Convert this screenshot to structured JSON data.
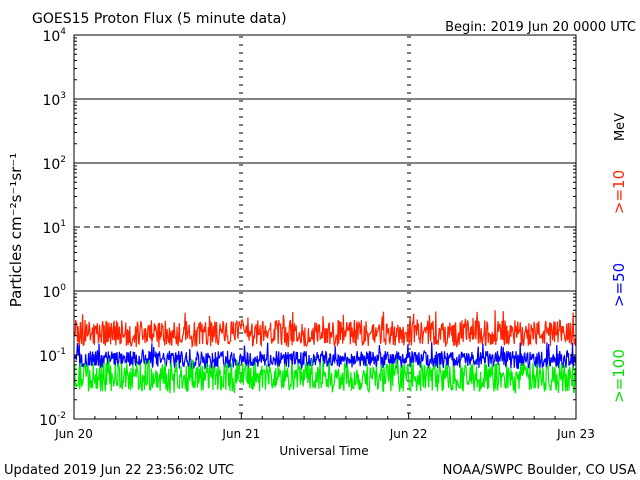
{
  "header": {
    "title": "GOES15 Proton Flux (5 minute data)",
    "begin": "Begin: 2019 Jun 20 0000 UTC"
  },
  "footer": {
    "updated": "Updated 2019 Jun 22 23:56:02 UTC",
    "source": "NOAA/SWPC Boulder, CO USA"
  },
  "chart_data": {
    "type": "line",
    "title": "GOES15 Proton Flux (5 minute data)",
    "xlabel": "Universal Time",
    "ylabel": "Particles cm⁻²s⁻¹sr⁻¹",
    "y_scale": "log",
    "ylim": [
      0.01,
      10000
    ],
    "xlim": [
      "2019-06-20 00:00",
      "2019-06-23 00:00"
    ],
    "x_ticks": [
      "Jun 20",
      "Jun 21",
      "Jun 22",
      "Jun 23"
    ],
    "y_ticks": [
      {
        "base": "10",
        "exp": "-2",
        "value": 0.01
      },
      {
        "base": "10",
        "exp": "-1",
        "value": 0.1
      },
      {
        "base": "10",
        "exp": "0",
        "value": 1
      },
      {
        "base": "10",
        "exp": "1",
        "value": 10
      },
      {
        "base": "10",
        "exp": "2",
        "value": 100
      },
      {
        "base": "10",
        "exp": "3",
        "value": 1000
      },
      {
        "base": "10",
        "exp": "4",
        "value": 10000
      }
    ],
    "threshold_lines": [
      {
        "value": 1,
        "style": "solid"
      },
      {
        "value": 10,
        "style": "dashed"
      },
      {
        "value": 100,
        "style": "solid"
      },
      {
        "value": 1000,
        "style": "solid"
      }
    ],
    "energy_unit": "MeV",
    "series": [
      {
        "name": ">=10",
        "color": "#ff2200",
        "typical": 0.22,
        "low": 0.13,
        "high": 0.5
      },
      {
        "name": ">=50",
        "color": "#0000ff",
        "typical": 0.085,
        "low": 0.06,
        "high": 0.16
      },
      {
        "name": ">=100",
        "color": "#00ee00",
        "typical": 0.045,
        "low": 0.025,
        "high": 0.09
      }
    ],
    "grid": false
  }
}
